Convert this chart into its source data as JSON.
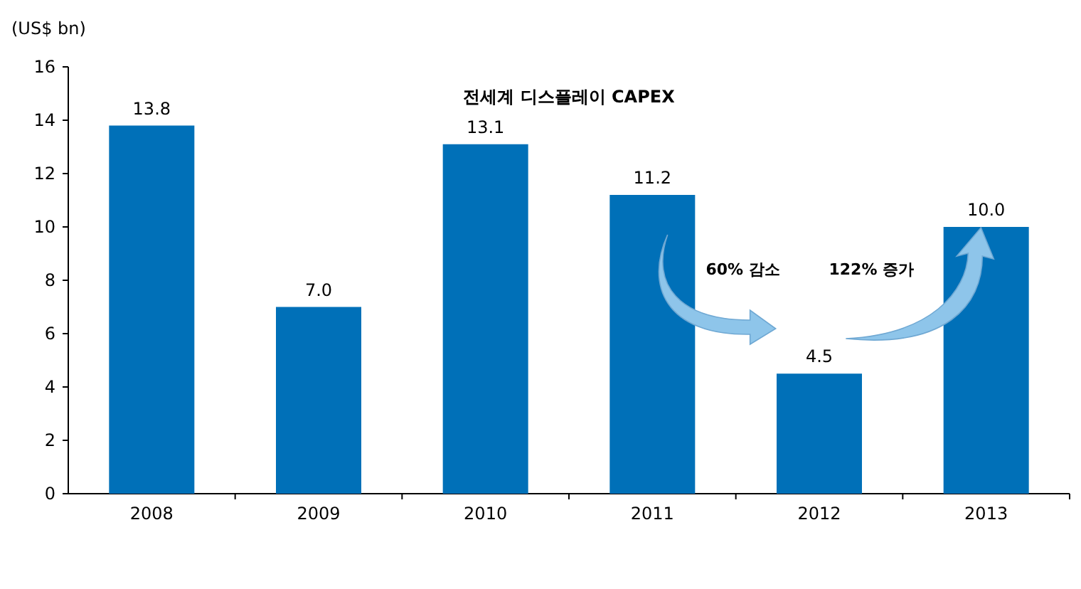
{
  "chart_data": {
    "type": "bar",
    "title": "전세계 디스플레이 CAPEX",
    "ylabel": "(US$ bn)",
    "categories": [
      "2008",
      "2009",
      "2010",
      "2011",
      "2012",
      "2013"
    ],
    "values": [
      13.8,
      7.0,
      13.1,
      11.2,
      4.5,
      10.0
    ],
    "value_labels": [
      "13.8",
      "7.0",
      "13.1",
      "11.2",
      "4.5",
      "10.0"
    ],
    "color": "#0070b8",
    "ylim": [
      0,
      16
    ],
    "yticks": [
      0,
      2,
      4,
      6,
      8,
      10,
      12,
      14,
      16
    ],
    "grid": false,
    "annotations": [
      "60% 감소",
      "122% 증가"
    ]
  }
}
